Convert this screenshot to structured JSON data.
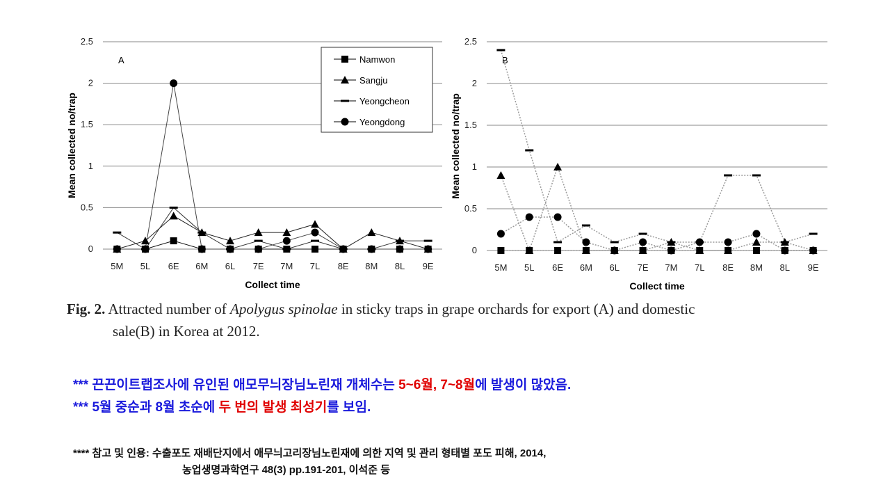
{
  "chart_data": [
    {
      "type": "line",
      "panel_label": "A",
      "y_label": "Mean collected no/trap",
      "x_label": "Collect time",
      "categories": [
        "5M",
        "5L",
        "6E",
        "6M",
        "6L",
        "7E",
        "7M",
        "7L",
        "8E",
        "8M",
        "8L",
        "9E"
      ],
      "ylim": [
        0,
        2.5
      ],
      "yticks": [
        0,
        0.5,
        1,
        1.5,
        2,
        2.5
      ],
      "grid": true,
      "legend": "top-right",
      "line_style": "solid",
      "series": [
        {
          "name": "Namwon",
          "marker": "square",
          "color": "#111111",
          "values": [
            0,
            0,
            0.1,
            0,
            0,
            0,
            0,
            0,
            0,
            0,
            0,
            0
          ]
        },
        {
          "name": "Sangju",
          "marker": "triangle",
          "color": "#222222",
          "values": [
            0,
            0.1,
            0.4,
            0.2,
            0.1,
            0.2,
            0.2,
            0.3,
            0,
            0.2,
            0.1,
            0
          ]
        },
        {
          "name": "Yeongcheon",
          "marker": "dash",
          "color": "#333333",
          "values": [
            0.2,
            0,
            0.5,
            0.2,
            0,
            0.1,
            0,
            0.1,
            0,
            0,
            0.1,
            0.1
          ]
        },
        {
          "name": "Yeongdong",
          "marker": "circle",
          "color": "#444444",
          "values": [
            0,
            0,
            2,
            0,
            0,
            0,
            0.1,
            0.2,
            0,
            0,
            0,
            0
          ]
        }
      ]
    },
    {
      "type": "line",
      "panel_label": "B",
      "y_label": "Mean collected no/trap",
      "x_label": "Collect time",
      "categories": [
        "5M",
        "5L",
        "6E",
        "6M",
        "6L",
        "7E",
        "7M",
        "7L",
        "8E",
        "8M",
        "8L",
        "9E"
      ],
      "ylim": [
        0,
        2.5
      ],
      "yticks": [
        0,
        0.5,
        1,
        1.5,
        2,
        2.5
      ],
      "grid": true,
      "line_style": "dotted",
      "series": [
        {
          "marker": "square",
          "color": "#999999",
          "values": [
            0,
            0,
            0,
            0,
            0,
            0,
            0,
            0,
            0,
            0,
            0,
            0
          ]
        },
        {
          "marker": "triangle",
          "color": "#999999",
          "values": [
            0.9,
            0,
            1,
            0,
            0,
            0,
            0.1,
            0,
            0,
            0.1,
            0.1,
            0
          ]
        },
        {
          "marker": "dash",
          "color": "#999999",
          "values": [
            2.4,
            1.2,
            0.1,
            0.3,
            0.1,
            0.2,
            0.1,
            0.1,
            0.9,
            0.9,
            0.1,
            0.2
          ]
        },
        {
          "marker": "circle",
          "color": "#999999",
          "values": [
            0.2,
            0.4,
            0.4,
            0.1,
            0,
            0.1,
            0,
            0.1,
            0.1,
            0.2,
            0,
            0
          ]
        }
      ]
    }
  ],
  "caption": {
    "label": "Fig. 2.",
    "text_before": "Attracted number of",
    "species": "Apolygus spinolae",
    "text_mid": "in sticky traps in grape orchards for export (A) and domestic",
    "text_end": "sale(B) in Korea at 2012."
  },
  "notes": [
    [
      "*** 끈끈이트랩조사에 유인된 애모무늬장님노린재 개체수는 ",
      "5~6월, 7~8월",
      "에 발생이 많았음."
    ],
    [
      "*** 5월 중순과 8월 초순에 ",
      "두 번의 발생 최성기",
      "를 보임."
    ]
  ],
  "reference": [
    "**** 참고 및 인용: 수출포도 재배단지에서 애무늬고리장님노린재에 의한 지역 및 관리 형태별 포도 피해, 2014,",
    "농업생명과학연구 48(3) pp.191-201, 이석준 등"
  ]
}
